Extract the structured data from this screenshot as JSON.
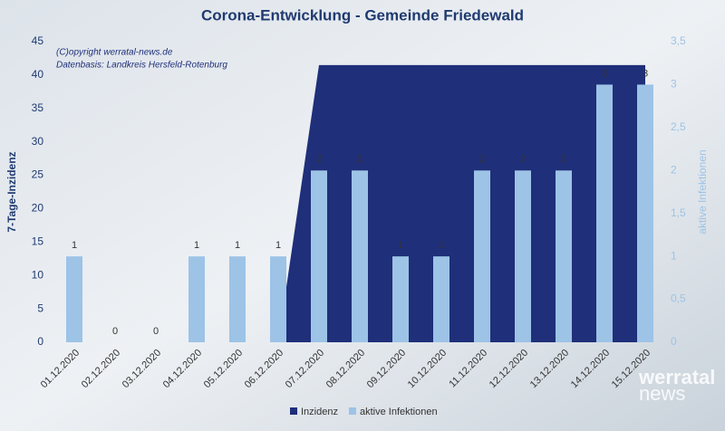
{
  "chart_data": {
    "type": "bar",
    "title": "Corona-Entwicklung - Gemeinde Friedewald",
    "annotations": [
      "(C)opyright werratal-news.de",
      "Datenbasis: Landkreis Hersfeld-Rotenburg"
    ],
    "watermark": [
      "werratal",
      "news"
    ],
    "ylabel": "7-Tage-Inzidenz",
    "y2label": "aktive Infektionen",
    "categories": [
      "01.12.2020",
      "02.12.2020",
      "03.12.2020",
      "04.12.2020",
      "05.12.2020",
      "06.12.2020",
      "07.12.2020",
      "08.12.2020",
      "09.12.2020",
      "10.12.2020",
      "11.12.2020",
      "12.12.2020",
      "13.12.2020",
      "14.12.2020",
      "15.12.2020"
    ],
    "series": [
      {
        "name": "Inzidenz",
        "type": "area",
        "color": "#1f2f7a",
        "values": [
          0,
          0,
          0,
          0,
          0,
          0,
          41.5,
          41.5,
          41.5,
          41.5,
          41.5,
          41.5,
          41.5,
          41.5,
          41.5
        ]
      },
      {
        "name": "aktive Infektionen",
        "type": "bar",
        "axis": "y2",
        "color": "#9dc3e6",
        "values": [
          1,
          0,
          0,
          1,
          1,
          1,
          2,
          2,
          1,
          1,
          2,
          2,
          2,
          3,
          3
        ]
      }
    ],
    "ylim": [
      0,
      45
    ],
    "yticks": [
      0,
      5,
      10,
      15,
      20,
      25,
      30,
      35,
      40,
      45
    ],
    "y2lim": [
      0,
      3.5
    ],
    "y2ticks": [
      0,
      {
        "value": 0.5,
        "label": "0,5"
      },
      1,
      {
        "value": 1.5,
        "label": "1,5"
      },
      2,
      {
        "value": 2.5,
        "label": "2,5"
      },
      3,
      {
        "value": 3.5,
        "label": "3,5"
      }
    ],
    "legend": "bottom"
  }
}
